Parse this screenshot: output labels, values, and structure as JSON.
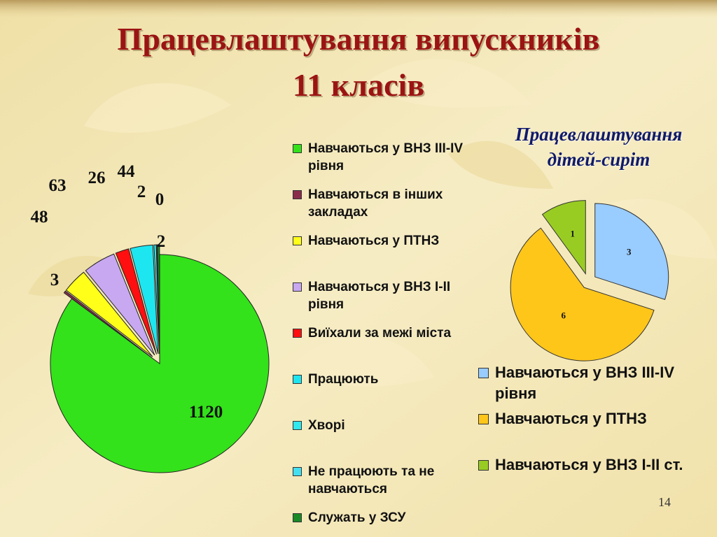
{
  "slide": {
    "title_line1": "Працевлаштування випускників",
    "title_line2": "11 класів",
    "page_number": "14"
  },
  "colors": {
    "background": "#f3e6b4",
    "title": "#9b1414",
    "subtitle": "#101a6a"
  },
  "chart_data": [
    {
      "type": "pie",
      "title": "",
      "exploded": true,
      "legend_position": "right",
      "slices": [
        {
          "label": "Навчаються у ВНЗ ІІІ-ІV рівня",
          "value": 1120,
          "color": "#33e21a"
        },
        {
          "label": "Навчаються в інших закладах",
          "value": 3,
          "color": "#8b2c4c"
        },
        {
          "label": "Навчаються у ПТНЗ",
          "value": 48,
          "color": "#ffff19"
        },
        {
          "label": "Навчаються у ВНЗ І-ІІ рівня",
          "value": 63,
          "color": "#c9a8f2"
        },
        {
          "label": "Виїхали за межі міста",
          "value": 26,
          "color": "#ff0f0f"
        },
        {
          "label": "Працюють",
          "value": 44,
          "color": "#1ee6f0"
        },
        {
          "label": "Хворі",
          "value": 2,
          "color": "#30e8ee"
        },
        {
          "label": "Не працюють та не навчаються",
          "value": 0,
          "color": "#44e0f2"
        },
        {
          "label": "Служать у ЗСУ",
          "value": 2,
          "color": "#1a8a28"
        }
      ]
    },
    {
      "type": "pie",
      "title": "Працевлаштування дітей-сиріт",
      "title_lines": [
        "Працевлаштування",
        "дітей-сиріт"
      ],
      "exploded": true,
      "legend_position": "bottom",
      "slices": [
        {
          "label": "Навчаються у ВНЗ ІІІ-ІV рівня",
          "value": 3,
          "color": "#99ccff"
        },
        {
          "label": "Навчаються у ПТНЗ",
          "value": 6,
          "color": "#ffc61a"
        },
        {
          "label": "Навчаються у ВНЗ І-ІІ ст.",
          "value": 1,
          "color": "#99cc22"
        }
      ]
    }
  ]
}
